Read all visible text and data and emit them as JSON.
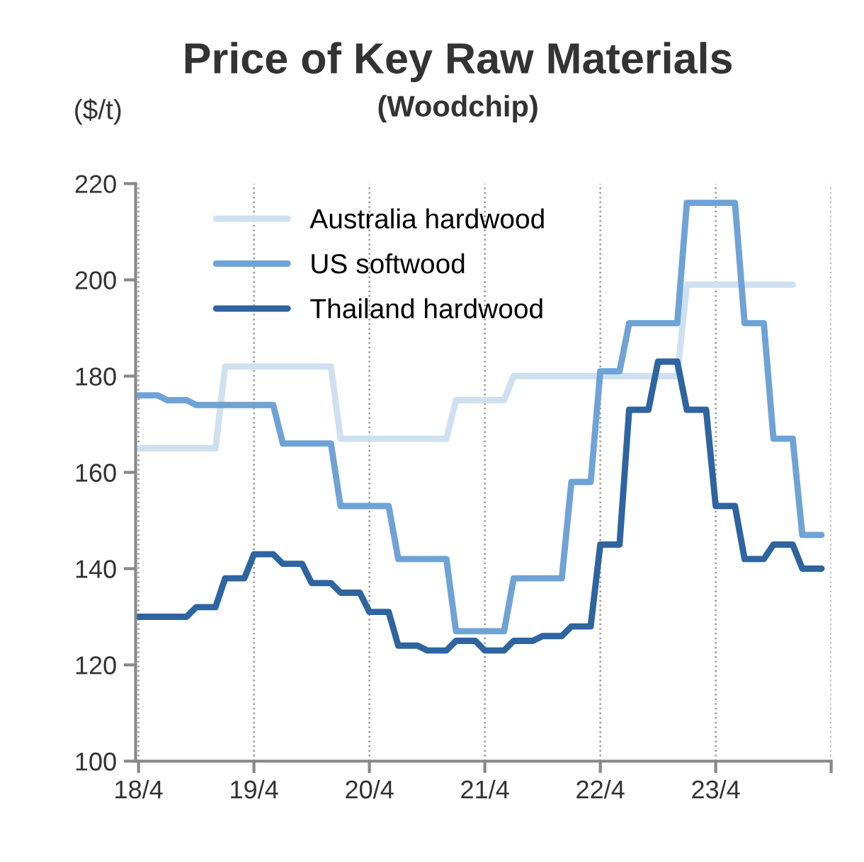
{
  "chart_data": {
    "type": "line",
    "title": "Price of Key Raw Materials",
    "subtitle": "(Woodchip)",
    "ylabel": "($/t)",
    "categories": [
      "18/4",
      null,
      null,
      null,
      null,
      null,
      null,
      null,
      null,
      null,
      null,
      null,
      "19/4",
      null,
      null,
      null,
      null,
      null,
      null,
      null,
      null,
      null,
      null,
      null,
      "20/4",
      null,
      null,
      null,
      null,
      null,
      null,
      null,
      null,
      null,
      null,
      null,
      "21/4",
      null,
      null,
      null,
      null,
      null,
      null,
      null,
      null,
      null,
      null,
      null,
      "22/4",
      null,
      null,
      null,
      null,
      null,
      null,
      null,
      null,
      null,
      null,
      null,
      "23/4",
      null,
      null,
      null,
      null,
      null,
      null,
      null,
      null,
      null,
      null,
      null
    ],
    "series": [
      {
        "name": "Australia hardwood",
        "color": "#cfe0f1",
        "values": [
          165,
          165,
          165,
          165,
          165,
          165,
          165,
          165,
          165,
          182,
          182,
          182,
          182,
          182,
          182,
          182,
          182,
          182,
          182,
          182,
          182,
          167,
          167,
          167,
          167,
          167,
          167,
          167,
          167,
          167,
          167,
          167,
          167,
          175,
          175,
          175,
          175,
          175,
          175,
          180,
          180,
          180,
          180,
          180,
          180,
          180,
          180,
          180,
          180,
          180,
          180,
          180,
          180,
          180,
          180,
          180,
          180,
          199,
          199,
          199,
          199,
          199,
          199,
          199,
          199,
          199,
          199,
          199,
          199,
          null,
          null,
          null
        ]
      },
      {
        "name": "US softwood",
        "color": "#6fa3d6",
        "values": [
          176,
          176,
          176,
          175,
          175,
          175,
          174,
          174,
          174,
          174,
          174,
          174,
          174,
          174,
          174,
          166,
          166,
          166,
          166,
          166,
          166,
          153,
          153,
          153,
          153,
          153,
          153,
          142,
          142,
          142,
          142,
          142,
          142,
          127,
          127,
          127,
          127,
          127,
          127,
          138,
          138,
          138,
          138,
          138,
          138,
          158,
          158,
          158,
          181,
          181,
          181,
          191,
          191,
          191,
          191,
          191,
          191,
          216,
          216,
          216,
          216,
          216,
          216,
          191,
          191,
          191,
          167,
          167,
          167,
          147,
          147,
          147
        ]
      },
      {
        "name": "Thailand hardwood",
        "color": "#2e649f",
        "values": [
          130,
          130,
          130,
          130,
          130,
          130,
          132,
          132,
          132,
          138,
          138,
          138,
          143,
          143,
          143,
          141,
          141,
          141,
          137,
          137,
          137,
          135,
          135,
          135,
          131,
          131,
          131,
          124,
          124,
          124,
          123,
          123,
          123,
          125,
          125,
          125,
          123,
          123,
          123,
          125,
          125,
          125,
          126,
          126,
          126,
          128,
          128,
          128,
          145,
          145,
          145,
          173,
          173,
          173,
          183,
          183,
          183,
          173,
          173,
          173,
          153,
          153,
          153,
          142,
          142,
          142,
          145,
          145,
          145,
          140,
          140,
          140
        ]
      }
    ],
    "ylim": [
      100,
      220
    ],
    "yticks": [
      100,
      120,
      140,
      160,
      180,
      200,
      220
    ],
    "grid": "x",
    "legend": "top left",
    "marker": "none",
    "line_style": "solid"
  }
}
